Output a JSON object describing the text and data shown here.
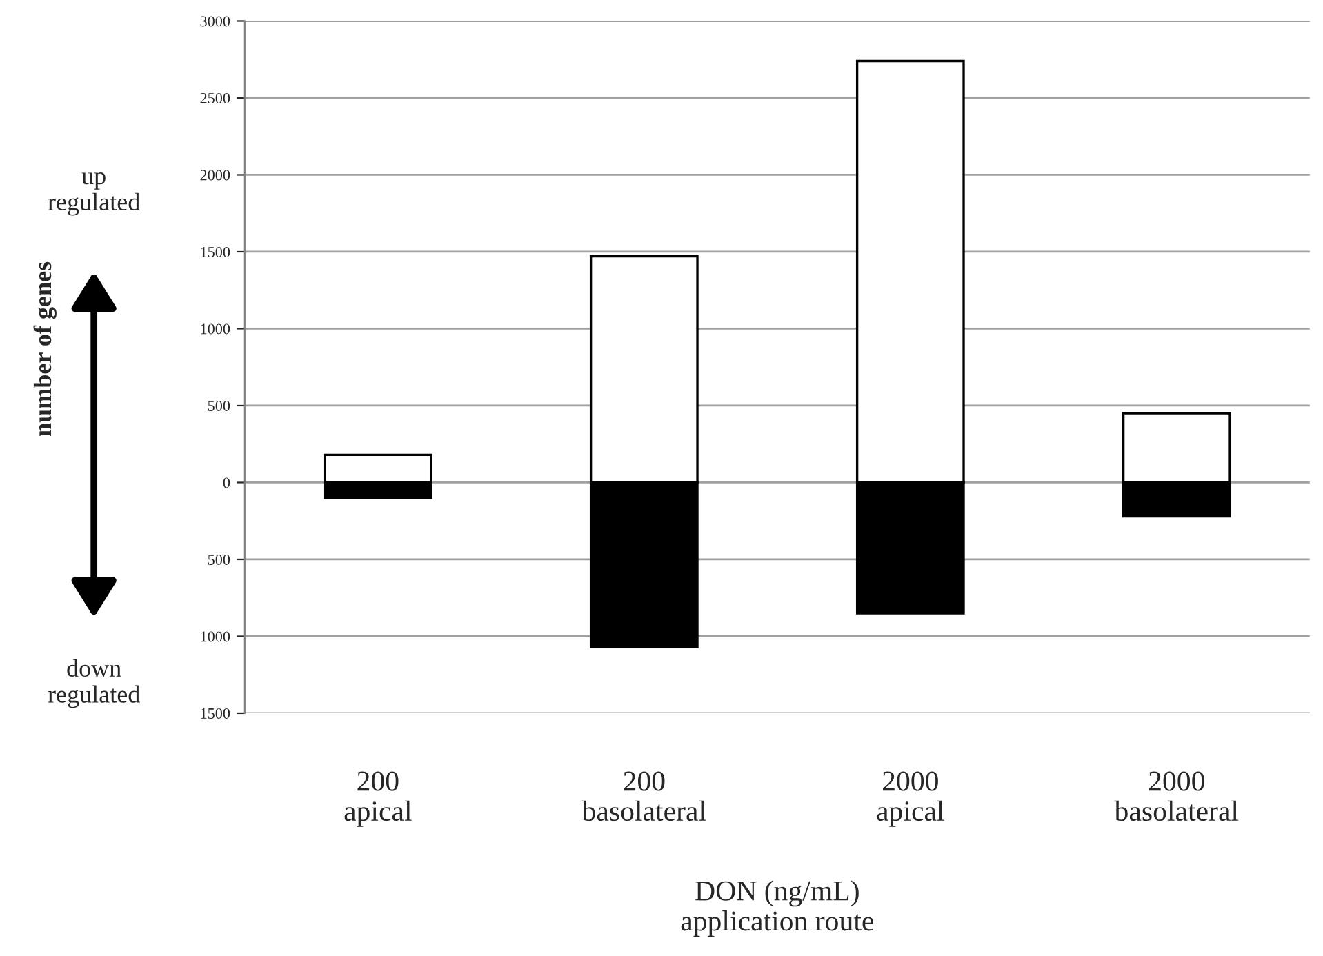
{
  "chart_data": {
    "type": "bar",
    "stacked": true,
    "categories": [
      "200\napical",
      "200\nbasolateral",
      "2000\napical",
      "2000\nbasolateral"
    ],
    "series": [
      {
        "color": "#ffffff",
        "values": [
          180,
          1470,
          2740,
          450
        ]
      },
      {
        "color": "#000000",
        "values": [
          -100,
          -1070,
          -850,
          -220
        ]
      }
    ],
    "xlabel": "DON (ng/mL)\napplication route",
    "ylim": [
      -1500,
      3000
    ],
    "yticks": [
      {
        "value": -1500,
        "label": "1500"
      },
      {
        "value": -1000,
        "label": "1000"
      },
      {
        "value": -500,
        "label": "500"
      },
      0,
      500,
      1000,
      1500,
      2000,
      2500,
      3000
    ],
    "grid": "y",
    "annotations": [
      "up\nregulated",
      "down\nregulated",
      "number of genes"
    ]
  }
}
